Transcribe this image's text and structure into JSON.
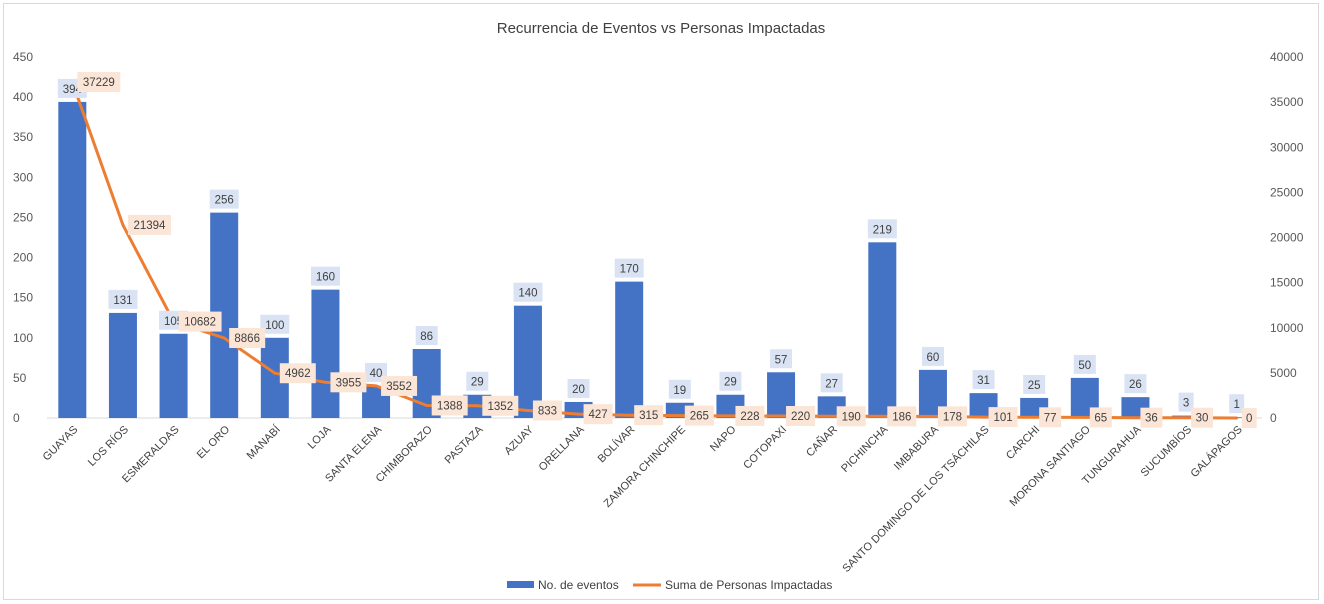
{
  "chart_data": {
    "type": "bar",
    "title": "Recurrencia de Eventos vs Personas Impactadas",
    "xlabel": "",
    "ylabel": "",
    "categories": [
      "GUAYAS",
      "LOS RÍOS",
      "ESMERALDAS",
      "EL ORO",
      "MANABÍ",
      "LOJA",
      "SANTA ELENA",
      "CHIMBORAZO",
      "PASTAZA",
      "AZUAY",
      "ORELLANA",
      "BOLÍVAR",
      "ZAMORA CHINCHIPE",
      "NAPO",
      "COTOPAXI",
      "CAÑAR",
      "PICHINCHA",
      "IMBABURA",
      "SANTO DOMINGO DE LOS TSÁCHILAS",
      "CARCHI",
      "MORONA SANTIAGO",
      "TUNGURAHUA",
      "SUCUMBÍOS",
      "GALÁPAGOS"
    ],
    "series": [
      {
        "name": "No. de eventos",
        "type": "bar",
        "axis": "left",
        "color": "#4472C4",
        "values": [
          394,
          131,
          105,
          256,
          100,
          160,
          40,
          86,
          29,
          140,
          20,
          170,
          19,
          29,
          57,
          27,
          219,
          60,
          31,
          25,
          50,
          26,
          3,
          1
        ]
      },
      {
        "name": "Suma de Personas Impactadas",
        "type": "line",
        "axis": "right",
        "color": "#ED7D31",
        "values": [
          37229,
          21394,
          10682,
          8866,
          4962,
          3955,
          3552,
          1388,
          1352,
          833,
          427,
          315,
          265,
          228,
          220,
          190,
          186,
          178,
          101,
          77,
          65,
          36,
          30,
          0
        ]
      }
    ],
    "ylim_left": [
      0,
      450
    ],
    "yticks_left": [
      "0",
      "50",
      "100",
      "150",
      "200",
      "250",
      "300",
      "350",
      "400",
      "450"
    ],
    "ylim_right": [
      0,
      40000
    ],
    "yticks_right": [
      "0",
      "5000",
      "10000",
      "15000",
      "20000",
      "25000",
      "30000",
      "35000",
      "40000"
    ],
    "grid": false,
    "legend_position": "bottom"
  }
}
